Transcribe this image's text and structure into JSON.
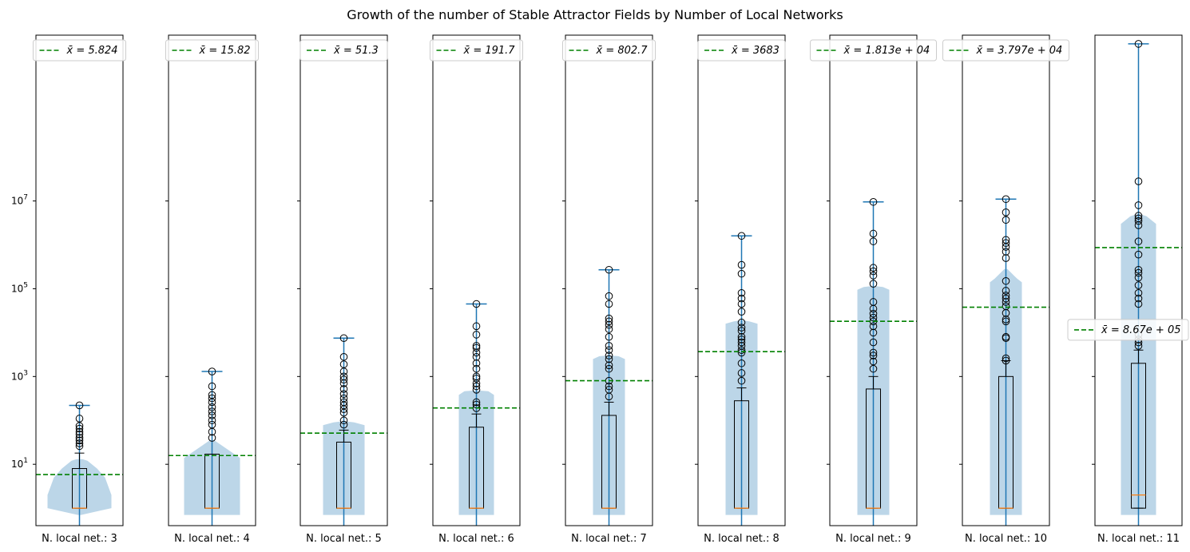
{
  "chart_data": {
    "type": "violin+box",
    "title": "Growth of the number of Stable Attractor Fields by Number of Local Networks",
    "yscale": "log",
    "ylim": [
      0.4,
      60000000000
    ],
    "y_tick_values": [
      10,
      1000,
      100000,
      10000000
    ],
    "y_tick_labels": [
      {
        "base": "10",
        "exp": "1"
      },
      {
        "base": "10",
        "exp": "3"
      },
      {
        "base": "10",
        "exp": "5"
      },
      {
        "base": "10",
        "exp": "7"
      }
    ],
    "colors": {
      "violin": "#bcd6e8",
      "whisker": "#1f77b4",
      "box": "#000000",
      "median": "#ff7f0e",
      "mean_line": "#008000"
    },
    "panels": [
      {
        "xlabel": "N. local net.: 3",
        "mean": 5.824,
        "legend": "x̄ = 5.824",
        "legend_loc": "upper center",
        "median": 1,
        "q1": 1,
        "q3": 8,
        "whisker_low": 1,
        "whisker_high": 18,
        "max": 220,
        "outliers": [
          26,
          30,
          35,
          40,
          48,
          55,
          65,
          75,
          110,
          220
        ],
        "violin": [
          [
            0.7,
            2
          ],
          [
            1,
            40
          ],
          [
            2,
            40
          ],
          [
            5,
            32
          ],
          [
            8,
            22
          ],
          [
            12,
            10
          ],
          [
            13,
            4
          ]
        ]
      },
      {
        "xlabel": "N. local net.: 4",
        "mean": 15.82,
        "legend": "x̄ = 15.82",
        "legend_loc": "upper center",
        "median": 1,
        "q1": 1,
        "q3": 17,
        "whisker_low": 1,
        "whisker_high": 17,
        "max": 1300,
        "outliers": [
          40,
          55,
          80,
          100,
          130,
          160,
          200,
          260,
          320,
          380,
          600,
          1300
        ],
        "violin": [
          [
            0.7,
            35
          ],
          [
            14,
            35
          ],
          [
            32,
            6
          ],
          [
            35,
            3
          ]
        ]
      },
      {
        "xlabel": "N. local net.: 5",
        "mean": 51.3,
        "legend": "x̄ = 51.3",
        "legend_loc": "upper center",
        "median": 1,
        "q1": 1,
        "q3": 32,
        "whisker_low": 1,
        "whisker_high": 60,
        "max": 7500,
        "outliers": [
          80,
          100,
          150,
          180,
          220,
          260,
          320,
          400,
          520,
          700,
          850,
          1000,
          1300,
          1900,
          2800,
          7500
        ],
        "violin": [
          [
            0.7,
            26
          ],
          [
            78,
            26
          ],
          [
            90,
            13
          ],
          [
            95,
            3
          ]
        ]
      },
      {
        "xlabel": "N. local net.: 6",
        "mean": 191.7,
        "legend": "x̄ = 191.7",
        "legend_loc": "upper center",
        "median": 1,
        "q1": 1,
        "q3": 70,
        "whisker_low": 1,
        "whisker_high": 140,
        "max": 45000,
        "outliers": [
          190,
          230,
          260,
          500,
          600,
          700,
          900,
          1000,
          1500,
          2000,
          2800,
          3500,
          4500,
          5000,
          9000,
          14000,
          45000
        ],
        "violin": [
          [
            0.7,
            22
          ],
          [
            380,
            22
          ],
          [
            460,
            15
          ],
          [
            480,
            2
          ]
        ]
      },
      {
        "xlabel": "N. local net.: 7",
        "mean": 802.7,
        "legend": "x̄ = 802.7",
        "legend_loc": "upper center",
        "median": 1,
        "q1": 1,
        "q3": 130,
        "whisker_low": 1,
        "whisker_high": 260,
        "max": 270000,
        "outliers": [
          350,
          500,
          600,
          800,
          1500,
          1800,
          2500,
          3000,
          4000,
          5000,
          8000,
          12000,
          15000,
          18000,
          21000,
          45000,
          68000,
          270000
        ],
        "violin": [
          [
            0.7,
            20
          ],
          [
            2500,
            20
          ],
          [
            2900,
            12
          ],
          [
            3000,
            2
          ]
        ]
      },
      {
        "xlabel": "N. local net.: 8",
        "mean": 3683,
        "legend": "x̄ = 3683",
        "legend_loc": "upper center",
        "median": 1,
        "q1": 1,
        "q3": 280,
        "whisker_low": 1,
        "whisker_high": 550,
        "max": 1600000,
        "outliers": [
          800,
          1200,
          2000,
          3500,
          4000,
          5000,
          6000,
          7000,
          8000,
          11000,
          13000,
          17000,
          30000,
          45000,
          60000,
          80000,
          220000,
          350000,
          1600000
        ],
        "violin": [
          [
            0.7,
            20
          ],
          [
            16000,
            20
          ],
          [
            18000,
            10
          ],
          [
            19000,
            2
          ]
        ]
      },
      {
        "xlabel": "N. local net.: 9",
        "mean": 18130,
        "legend": "x̄ = 1.813e + 04",
        "legend_loc": "upper center",
        "median": 1,
        "q1": 1,
        "q3": 520,
        "whisker_low": 1,
        "whisker_high": 1000,
        "max": 9500000,
        "outliers": [
          1500,
          2200,
          3000,
          3500,
          6000,
          10000,
          14000,
          18000,
          22000,
          27000,
          35000,
          50000,
          130000,
          200000,
          250000,
          300000,
          1200000,
          1800000,
          9500000
        ],
        "violin": [
          [
            0.7,
            20
          ],
          [
            95000,
            20
          ],
          [
            110000,
            12
          ],
          [
            115000,
            2
          ]
        ]
      },
      {
        "xlabel": "N. local net.: 10",
        "mean": 37970,
        "legend": "x̄ = 3.797e + 04",
        "legend_loc": "upper center",
        "median": 1,
        "q1": 1,
        "q3": 1000,
        "whisker_low": 1,
        "whisker_high": 2300,
        "max": 11000000,
        "outliers": [
          2300,
          2600,
          7500,
          8000,
          18000,
          20000,
          28000,
          40000,
          50000,
          60000,
          70000,
          90000,
          150000,
          500000,
          700000,
          900000,
          1100000,
          1300000,
          3700000,
          5500000,
          11000000
        ],
        "violin": [
          [
            0.7,
            20
          ],
          [
            140000,
            20
          ],
          [
            170000,
            14
          ],
          [
            280000,
            2
          ]
        ]
      },
      {
        "xlabel": "N. local net.: 11",
        "mean": 867000,
        "legend": "x̄ = 8.67e + 05",
        "legend_loc": "center left",
        "median": 2,
        "q1": 1,
        "q3": 2000,
        "whisker_low": 1,
        "whisker_high": 4000,
        "max": 38000000000,
        "outliers": [
          5000,
          6000,
          7000,
          9000,
          45000,
          60000,
          80000,
          120000,
          180000,
          230000,
          270000,
          600000,
          1200000,
          2800000,
          3500000,
          4000000,
          4600000,
          8000000,
          28000000,
          38000000000
        ],
        "violin": [
          [
            0.7,
            22
          ],
          [
            3000000,
            22
          ],
          [
            4500000,
            10
          ],
          [
            5000000,
            2
          ]
        ]
      }
    ]
  }
}
